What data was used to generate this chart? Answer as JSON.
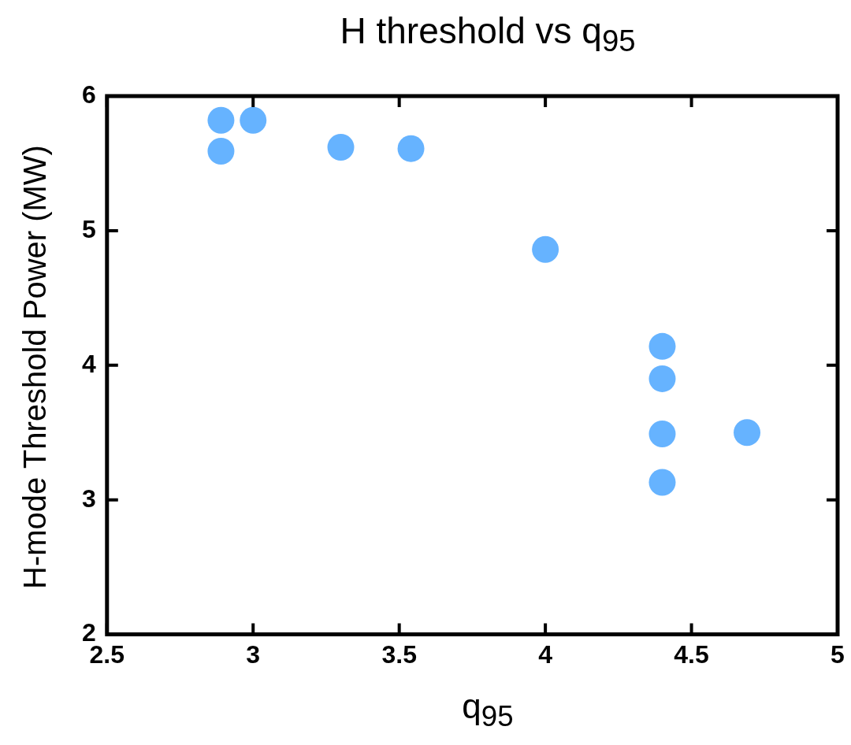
{
  "chart_data": {
    "type": "scatter",
    "title": "H threshold vs q$_{95}$",
    "xlabel": "q$_{95}$",
    "ylabel": "H-mode Threshold Power (MW)",
    "x": [
      2.89,
      2.89,
      3.0,
      3.3,
      3.54,
      4.0,
      4.4,
      4.4,
      4.4,
      4.4,
      4.69
    ],
    "series": [
      {
        "color": "#66b3ff",
        "values": [
          5.82,
          5.59,
          5.82,
          5.62,
          5.61,
          4.86,
          4.14,
          3.9,
          3.49,
          3.13,
          3.5
        ]
      }
    ],
    "xlim": [
      2.5,
      5
    ],
    "xticks": [
      2.5,
      3,
      3.5,
      4,
      4.5,
      5
    ],
    "ylim": [
      2,
      6
    ],
    "yticks": [
      2,
      3,
      4,
      5,
      6
    ],
    "grid": false,
    "legend": false,
    "marker": "circle"
  }
}
